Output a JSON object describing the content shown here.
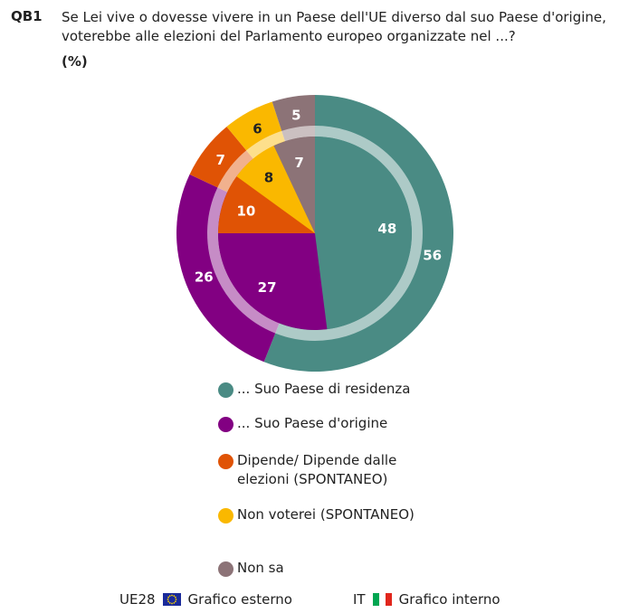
{
  "header": {
    "code": "QB1",
    "question": "Se Lei vive o dovesse vivere in un Paese dell'UE diverso dal suo Paese d'origine, voterebbe alle elezioni del Parlamento europeo organizzate nel ...?",
    "unit": "(%)"
  },
  "chart_data": {
    "type": "pie",
    "title": "Se Lei vive o dovesse vivere in un Paese dell'UE diverso dal suo Paese d'origine, voterebbe alle elezioni del Parlamento europeo organizzate nel ...?",
    "unit": "(%)",
    "categories": [
      "... Suo Paese di residenza",
      "... Suo Paese d'origine",
      "Dipende/ Dipende dalle elezioni (SPONTANEO)",
      "Non voterei (SPONTANEO)",
      "Non sa"
    ],
    "colors": [
      "#4a8b84",
      "#820082",
      "#e05305",
      "#fab800",
      "#8c7377"
    ],
    "series": [
      {
        "name": "Grafico esterno",
        "region": "UE28",
        "ring": "outer",
        "values": [
          56,
          26,
          7,
          6,
          5
        ]
      },
      {
        "name": "Grafico interno",
        "region": "IT",
        "ring": "inner",
        "values": [
          48,
          27,
          10,
          8,
          7
        ]
      }
    ],
    "legend_position": "bottom"
  },
  "footer": {
    "outer_region": "UE28",
    "outer_label": "Grafico esterno",
    "inner_region": "IT",
    "inner_label": "Grafico interno"
  }
}
